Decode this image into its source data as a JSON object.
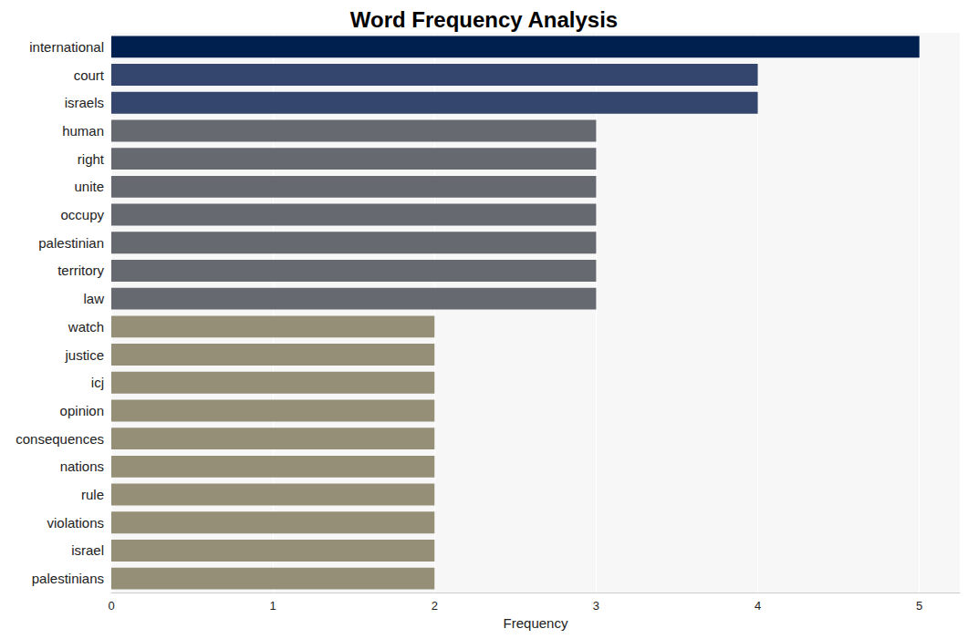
{
  "chart_data": {
    "type": "bar",
    "orientation": "horizontal",
    "title": "Word Frequency Analysis",
    "x_label": "Frequency",
    "categories": [
      "international",
      "court",
      "israels",
      "human",
      "right",
      "unite",
      "occupy",
      "palestinian",
      "territory",
      "law",
      "watch",
      "justice",
      "icj",
      "opinion",
      "consequences",
      "nations",
      "rule",
      "violations",
      "israel",
      "palestinians"
    ],
    "values": [
      5,
      4,
      4,
      3,
      3,
      3,
      3,
      3,
      3,
      3,
      2,
      2,
      2,
      2,
      2,
      2,
      2,
      2,
      2,
      2
    ],
    "colors": [
      "#00204f",
      "#34466e",
      "#34466e",
      "#676970",
      "#676970",
      "#676970",
      "#676970",
      "#676970",
      "#676970",
      "#676970",
      "#958f78",
      "#958f78",
      "#958f78",
      "#958f78",
      "#958f78",
      "#958f78",
      "#958f78",
      "#958f78",
      "#958f78",
      "#958f78"
    ],
    "xlim": [
      0,
      5.25
    ],
    "xticks": [
      0,
      1,
      2,
      3,
      4,
      5
    ],
    "grid": true
  }
}
